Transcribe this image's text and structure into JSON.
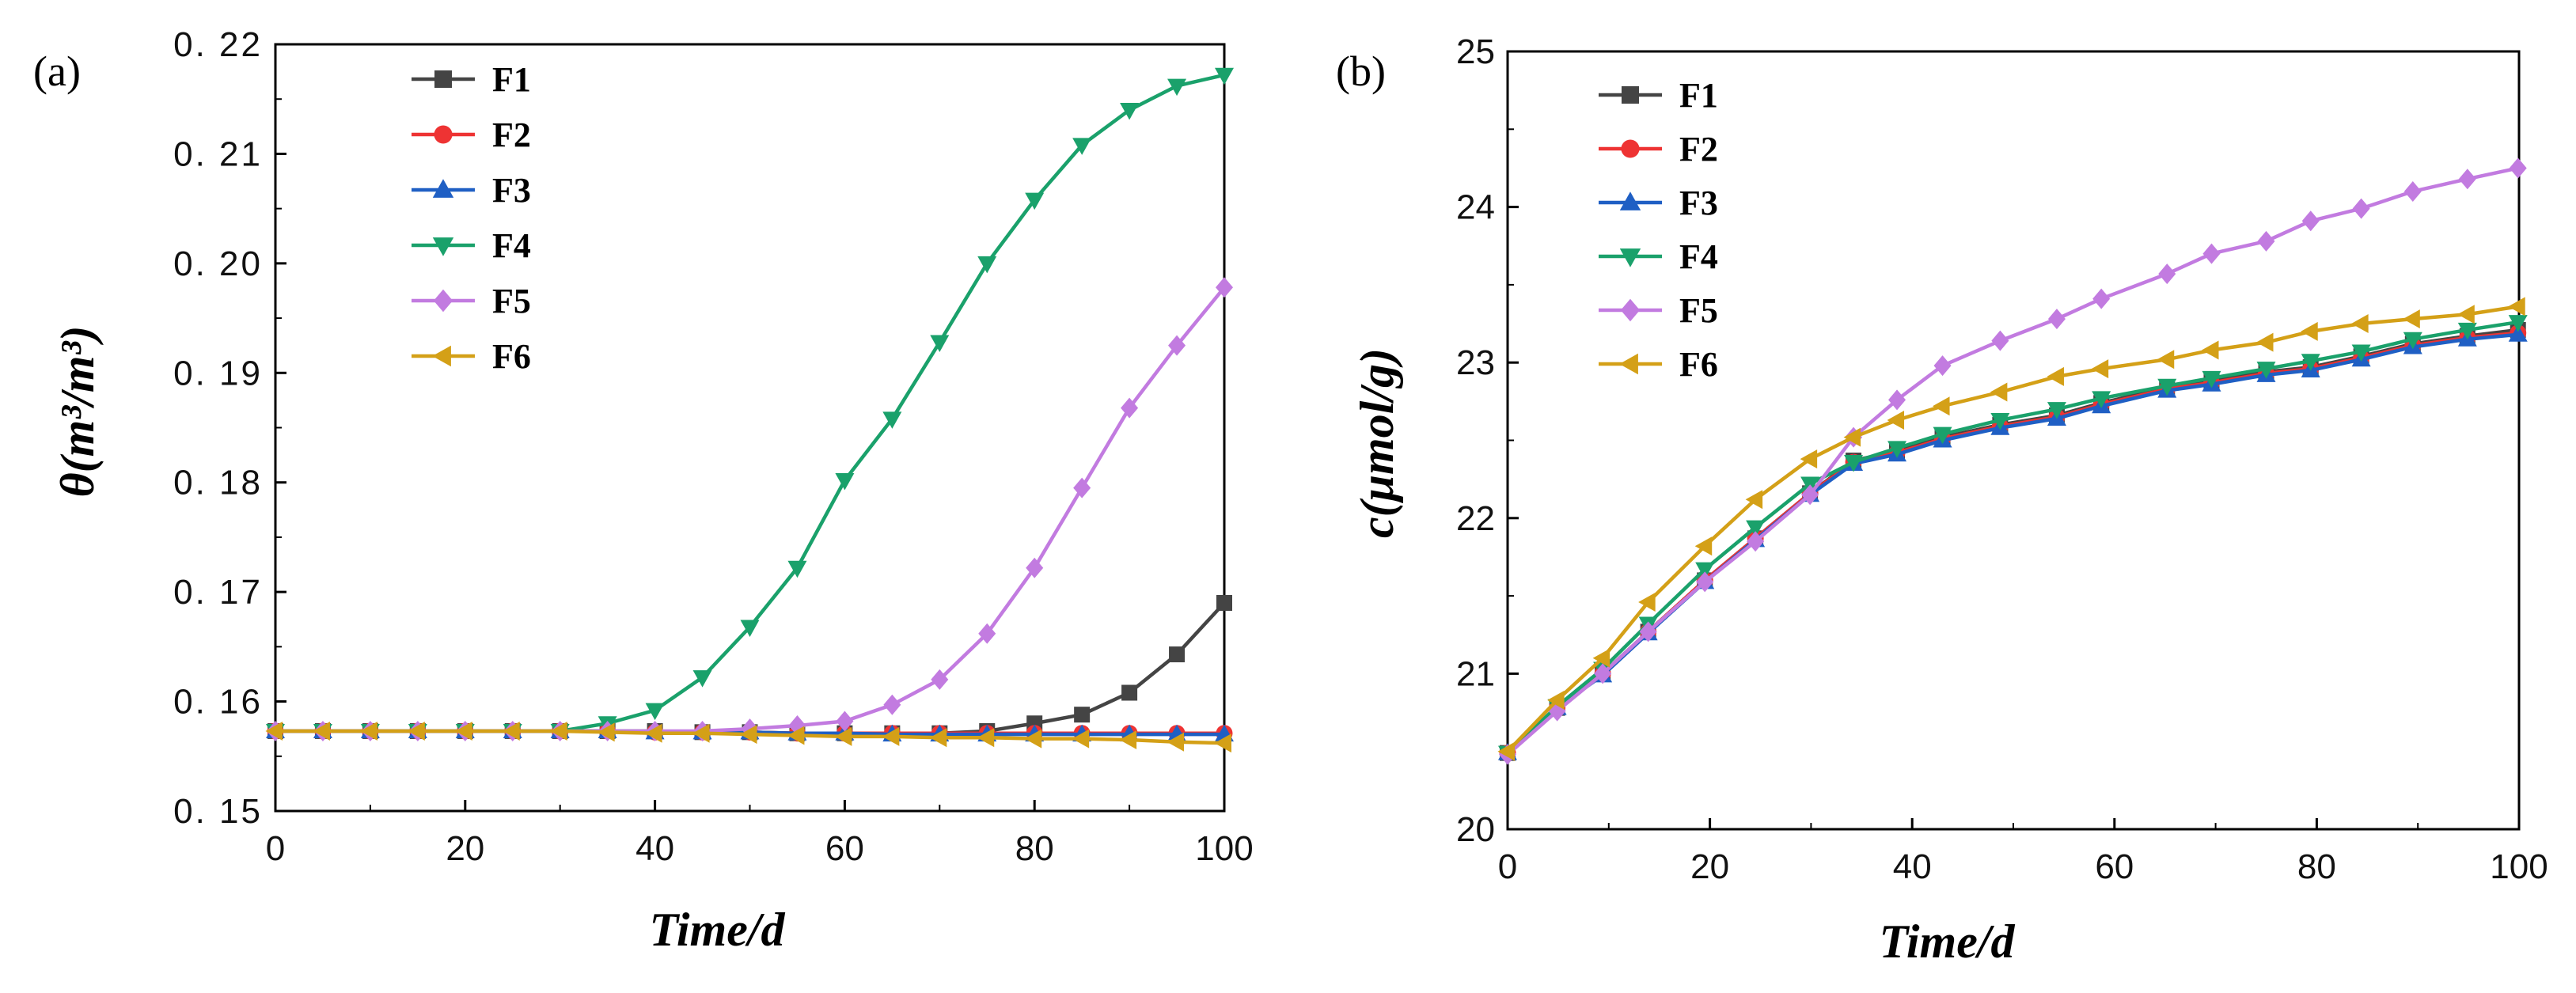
{
  "chart_data": [
    {
      "type": "line",
      "panel_label": "(a)",
      "xlabel": "Time/d",
      "ylabel": "θ(m³/m³)",
      "xlim": [
        0,
        100
      ],
      "ylim": [
        0.15,
        0.22
      ],
      "x_ticks": [
        "0",
        "20",
        "40",
        "60",
        "80",
        "100"
      ],
      "y_ticks": [
        "0. 15",
        "0. 16",
        "0. 17",
        "0. 18",
        "0. 19",
        "0. 20",
        "0. 21",
        "0. 22"
      ],
      "legend_position": "top-left",
      "grid": false,
      "x": [
        0,
        5,
        10,
        15,
        20,
        25,
        30,
        35,
        40,
        45,
        50,
        55,
        60,
        65,
        70,
        75,
        80,
        85,
        90,
        95,
        100
      ],
      "series": [
        {
          "name": "F1",
          "color": "#444444",
          "marker": "square",
          "values": [
            0.1573,
            0.1573,
            0.1573,
            0.1573,
            0.1573,
            0.1573,
            0.1573,
            0.1573,
            0.1573,
            0.1572,
            0.1572,
            0.1571,
            0.1571,
            0.1571,
            0.1571,
            0.1573,
            0.158,
            0.1588,
            0.1608,
            0.1643,
            0.169
          ]
        },
        {
          "name": "F2",
          "color": "#ee3333",
          "marker": "circle",
          "values": [
            0.1573,
            0.1573,
            0.1573,
            0.1573,
            0.1573,
            0.1573,
            0.1573,
            0.1573,
            0.1572,
            0.1572,
            0.1572,
            0.1571,
            0.1571,
            0.1571,
            0.1571,
            0.1571,
            0.1571,
            0.1571,
            0.1571,
            0.1571,
            0.1571
          ]
        },
        {
          "name": "F3",
          "color": "#1f5fc4",
          "marker": "triangle-up",
          "values": [
            0.1573,
            0.1573,
            0.1573,
            0.1573,
            0.1573,
            0.1573,
            0.1573,
            0.1573,
            0.1572,
            0.1572,
            0.1572,
            0.1571,
            0.1571,
            0.157,
            0.157,
            0.157,
            0.157,
            0.157,
            0.157,
            0.157,
            0.157
          ]
        },
        {
          "name": "F4",
          "color": "#1aa16b",
          "marker": "triangle-down",
          "values": [
            0.1573,
            0.1573,
            0.1573,
            0.1573,
            0.1573,
            0.1573,
            0.1573,
            0.158,
            0.1592,
            0.1622,
            0.1668,
            0.1722,
            0.1802,
            0.1858,
            0.1928,
            0.2,
            0.2058,
            0.2108,
            0.214,
            0.2162,
            0.2172
          ]
        },
        {
          "name": "F5",
          "color": "#c27be0",
          "marker": "diamond",
          "values": [
            0.1573,
            0.1573,
            0.1573,
            0.1573,
            0.1573,
            0.1573,
            0.1573,
            0.1573,
            0.1573,
            0.1573,
            0.1575,
            0.1578,
            0.1582,
            0.1597,
            0.162,
            0.1662,
            0.1722,
            0.1795,
            0.1868,
            0.1925,
            0.1978
          ]
        },
        {
          "name": "F6",
          "color": "#d4a017",
          "marker": "triangle-left",
          "values": [
            0.1573,
            0.1573,
            0.1573,
            0.1573,
            0.1573,
            0.1573,
            0.1573,
            0.1572,
            0.1571,
            0.1571,
            0.157,
            0.1569,
            0.1568,
            0.1568,
            0.1567,
            0.1567,
            0.1566,
            0.1566,
            0.1565,
            0.1563,
            0.1562
          ]
        }
      ]
    },
    {
      "type": "line",
      "panel_label": "(b)",
      "xlabel": "Time/d",
      "ylabel": "c(μmol/g)",
      "xlim": [
        0,
        100
      ],
      "ylim": [
        20,
        25
      ],
      "x_ticks": [
        "0",
        "20",
        "40",
        "60",
        "80",
        "100"
      ],
      "y_ticks": [
        "20",
        "21",
        "22",
        "23",
        "24",
        "25"
      ],
      "legend_position": "top-left",
      "grid": false,
      "series": [
        {
          "name": "F1",
          "color": "#444444",
          "marker": "square",
          "x": [
            0,
            4.9,
            9.4,
            13.9,
            19.5,
            24.5,
            29.9,
            34.2,
            38.5,
            43.0,
            48.7,
            54.3,
            58.7,
            65.2,
            69.6,
            75.0,
            79.4,
            84.4,
            89.5,
            94.9,
            99.9
          ],
          "values": [
            20.49,
            20.78,
            21.0,
            21.27,
            21.6,
            21.87,
            22.16,
            22.37,
            22.43,
            22.52,
            22.6,
            22.66,
            22.74,
            22.84,
            22.88,
            22.94,
            22.97,
            23.04,
            23.12,
            23.17,
            23.21
          ]
        },
        {
          "name": "F2",
          "color": "#ee3333",
          "marker": "circle",
          "x": [
            0,
            4.9,
            9.4,
            13.9,
            19.5,
            24.5,
            29.9,
            34.2,
            38.5,
            43.0,
            48.7,
            54.3,
            58.7,
            65.2,
            69.6,
            75.0,
            79.4,
            84.4,
            89.5,
            94.9,
            99.9
          ],
          "values": [
            20.49,
            20.78,
            21.0,
            21.27,
            21.6,
            21.87,
            22.16,
            22.36,
            22.42,
            22.51,
            22.59,
            22.65,
            22.73,
            22.83,
            22.87,
            22.93,
            22.96,
            23.03,
            23.11,
            23.16,
            23.19
          ]
        },
        {
          "name": "F3",
          "color": "#1f5fc4",
          "marker": "triangle-up",
          "x": [
            0,
            4.9,
            9.4,
            13.9,
            19.5,
            24.5,
            29.9,
            34.2,
            38.5,
            43.0,
            48.7,
            54.3,
            58.7,
            65.2,
            69.6,
            75.0,
            79.4,
            84.4,
            89.5,
            94.9,
            99.9
          ],
          "values": [
            20.49,
            20.78,
            20.99,
            21.26,
            21.59,
            21.86,
            22.15,
            22.35,
            22.41,
            22.5,
            22.58,
            22.64,
            22.72,
            22.82,
            22.86,
            22.92,
            22.95,
            23.02,
            23.1,
            23.15,
            23.18
          ]
        },
        {
          "name": "F4",
          "color": "#1aa16b",
          "marker": "triangle-down",
          "x": [
            0,
            4.9,
            9.4,
            13.9,
            19.5,
            24.5,
            29.9,
            34.2,
            38.5,
            43.0,
            48.7,
            54.3,
            58.7,
            65.2,
            69.6,
            75.0,
            79.4,
            84.4,
            89.5,
            94.9,
            99.9
          ],
          "values": [
            20.49,
            20.79,
            21.03,
            21.32,
            21.67,
            21.94,
            22.22,
            22.36,
            22.45,
            22.54,
            22.63,
            22.7,
            22.77,
            22.85,
            22.9,
            22.96,
            23.01,
            23.07,
            23.15,
            23.21,
            23.26
          ]
        },
        {
          "name": "F5",
          "color": "#c27be0",
          "marker": "diamond",
          "x": [
            0,
            4.9,
            9.4,
            13.9,
            19.5,
            24.5,
            29.9,
            34.2,
            38.5,
            43.0,
            48.7,
            54.3,
            58.7,
            65.2,
            69.6,
            75.0,
            79.4,
            84.4,
            89.5,
            94.9,
            99.9
          ],
          "values": [
            20.48,
            20.76,
            21.0,
            21.27,
            21.59,
            21.85,
            22.15,
            22.52,
            22.76,
            22.98,
            23.14,
            23.28,
            23.41,
            23.57,
            23.7,
            23.78,
            23.91,
            23.99,
            24.1,
            24.18,
            24.25
          ]
        },
        {
          "name": "F6",
          "color": "#d4a017",
          "marker": "triangle-left",
          "x": [
            0,
            4.9,
            9.4,
            13.9,
            19.5,
            24.5,
            29.9,
            34.2,
            38.5,
            43.0,
            48.7,
            54.3,
            58.7,
            65.2,
            69.6,
            75.0,
            79.4,
            84.4,
            89.5,
            94.9,
            99.9
          ],
          "values": [
            20.5,
            20.83,
            21.1,
            21.46,
            21.82,
            22.12,
            22.38,
            22.52,
            22.63,
            22.72,
            22.81,
            22.91,
            22.96,
            23.02,
            23.08,
            23.13,
            23.2,
            23.25,
            23.28,
            23.31,
            23.36
          ]
        }
      ]
    }
  ]
}
